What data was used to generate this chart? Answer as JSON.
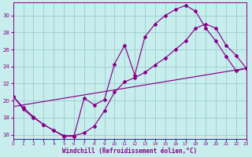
{
  "xlabel": "Windchill (Refroidissement éolien,°C)",
  "bg_color": "#c8eded",
  "line_color": "#880088",
  "grid_color": "#99cccc",
  "xlim": [
    0,
    23
  ],
  "ylim": [
    15.5,
    31.5
  ],
  "yticks": [
    16,
    18,
    20,
    22,
    24,
    26,
    28,
    30
  ],
  "xticks": [
    0,
    1,
    2,
    3,
    4,
    5,
    6,
    7,
    8,
    9,
    10,
    11,
    12,
    13,
    14,
    15,
    16,
    17,
    18,
    19,
    20,
    21,
    22,
    23
  ],
  "line1_x": [
    0,
    1,
    2,
    3,
    4,
    5,
    6,
    7,
    8,
    9,
    10,
    11,
    12,
    13,
    14,
    15,
    16,
    17,
    18,
    19,
    20,
    21,
    22,
    23
  ],
  "line1_y": [
    20.5,
    19.0,
    18.0,
    17.2,
    16.5,
    15.8,
    15.8,
    20.3,
    19.5,
    20.1,
    24.3,
    26.5,
    23.0,
    27.5,
    29.0,
    30.0,
    30.7,
    31.2,
    30.5,
    28.5,
    27.0,
    25.2,
    23.5,
    23.8
  ],
  "line2_x": [
    0,
    1,
    2,
    3,
    4,
    5,
    6,
    7,
    8,
    9,
    10,
    11,
    12,
    13,
    14,
    15,
    16,
    17,
    18,
    19,
    20,
    21,
    22,
    23
  ],
  "line2_y": [
    20.5,
    19.2,
    18.1,
    17.2,
    16.5,
    15.9,
    15.9,
    16.2,
    17.0,
    18.8,
    21.0,
    22.2,
    22.7,
    23.3,
    24.2,
    25.0,
    26.0,
    27.0,
    28.5,
    29.0,
    28.5,
    26.5,
    25.3,
    23.8
  ],
  "line3_x": [
    0,
    23
  ],
  "line3_y": [
    19.3,
    23.8
  ],
  "marker": "D",
  "markersize": 2.0,
  "linewidth": 0.85
}
